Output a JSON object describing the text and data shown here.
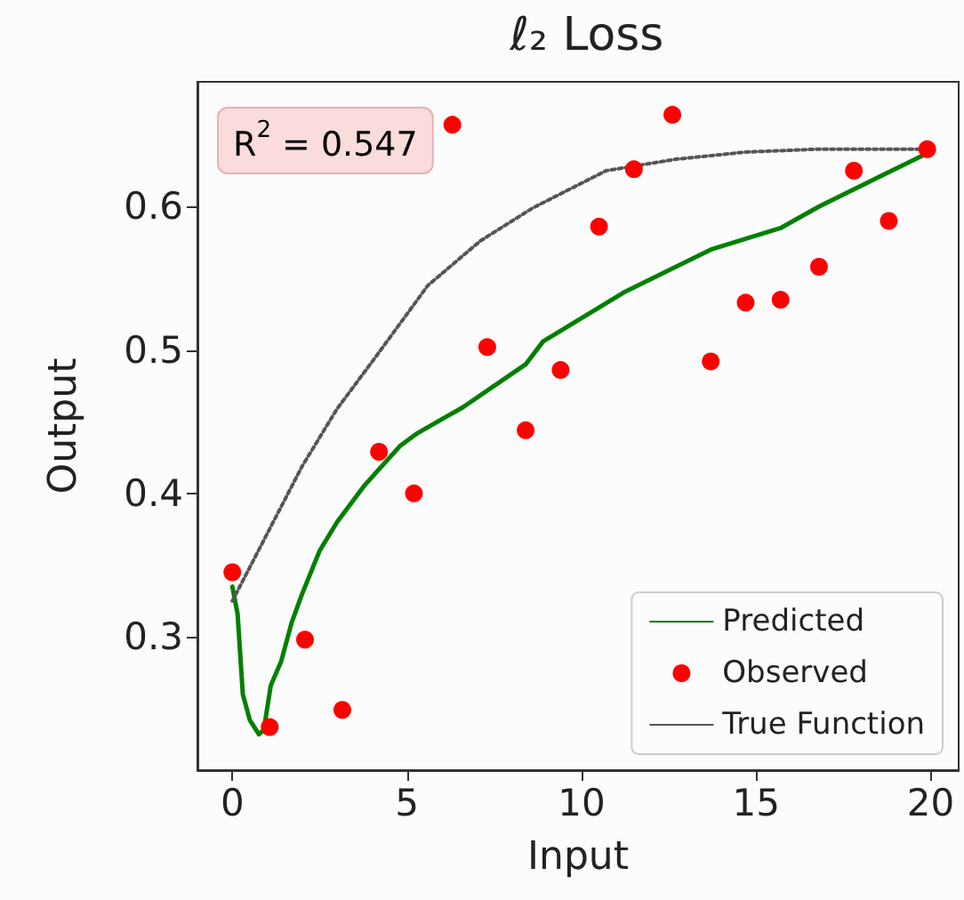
{
  "chart_data": {
    "type": "scatter",
    "title": "ℓ₂ Loss",
    "xlabel": "Input",
    "ylabel": "Output",
    "xlim": [
      -1,
      20.8
    ],
    "ylim": [
      0.207,
      0.687
    ],
    "xticks": [
      0,
      5,
      10,
      15,
      20
    ],
    "yticks": [
      0.3,
      0.4,
      0.5,
      0.6
    ],
    "grid": false,
    "legend": "bottom right",
    "annotations": [
      "R$^{2}$ = 0.547"
    ],
    "series": [
      {
        "name": "Predicted",
        "type": "line",
        "color": "#008000",
        "marker": "none",
        "line_style": "solid",
        "x": [
          0,
          0.15,
          0.3,
          0.5,
          0.76,
          0.9,
          1.1,
          1.4,
          1.7,
          2.0,
          2.5,
          3.0,
          3.8,
          4.8,
          5.3,
          6.6,
          8.4,
          8.9,
          11.2,
          13.7,
          15.7,
          16.8,
          18.8,
          19.8
        ],
        "values": [
          0.335,
          0.316,
          0.26,
          0.242,
          0.232,
          0.235,
          0.266,
          0.283,
          0.31,
          0.33,
          0.36,
          0.38,
          0.406,
          0.433,
          0.442,
          0.46,
          0.49,
          0.506,
          0.54,
          0.57,
          0.585,
          0.6,
          0.624,
          0.636
        ]
      },
      {
        "name": "Observed",
        "color": "#ff0000",
        "marker": "circle",
        "x": [
          0,
          1.07,
          2.08,
          3.15,
          4.2,
          5.2,
          6.3,
          7.3,
          8.4,
          9.4,
          10.5,
          11.5,
          12.6,
          13.7,
          14.7,
          15.7,
          16.8,
          17.8,
          18.8,
          19.9
        ],
        "values": [
          0.345,
          0.237,
          0.298,
          0.249,
          0.429,
          0.4,
          0.657,
          0.502,
          0.444,
          0.486,
          0.586,
          0.626,
          0.664,
          0.492,
          0.533,
          0.535,
          0.558,
          0.625,
          0.59,
          0.64
        ]
      },
      {
        "name": "True Function",
        "type": "line",
        "color": "#555555",
        "marker": "none",
        "line_style": "dotted",
        "x": [
          0,
          1,
          2,
          3,
          4.1,
          5.6,
          7.1,
          8.6,
          10.7,
          12.7,
          14.7,
          16.7,
          20
        ],
        "values": [
          0.325,
          0.372,
          0.419,
          0.459,
          0.495,
          0.545,
          0.576,
          0.599,
          0.625,
          0.633,
          0.638,
          0.64,
          0.64
        ]
      }
    ]
  }
}
